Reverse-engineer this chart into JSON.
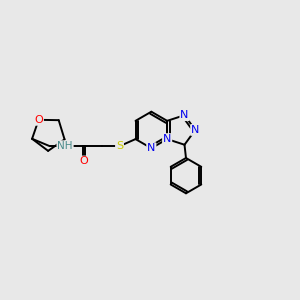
{
  "background_color": "#e8e8e8",
  "atom_colors": {
    "C": "#000000",
    "N": "#0000ee",
    "O": "#ff0000",
    "S": "#cccc00",
    "NH": "#4a8a8a"
  },
  "lw": 1.4,
  "fontsize": 8.0
}
